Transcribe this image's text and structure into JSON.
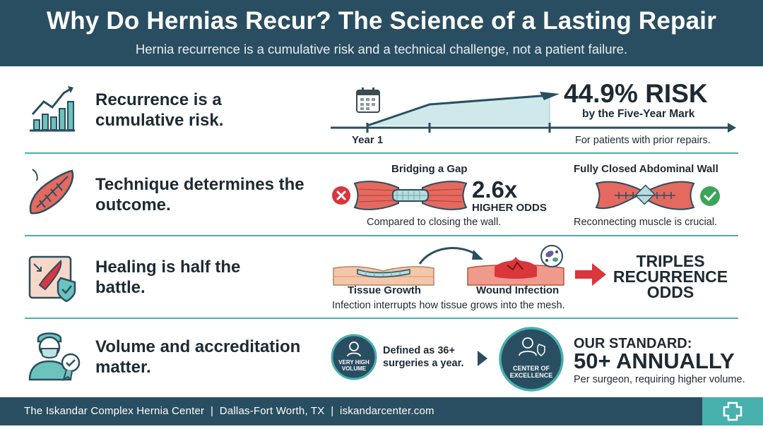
{
  "header": {
    "title": "Why Do Hernias Recur? The Science of a Lasting Repair",
    "subtitle": "Hernia recurrence is a cumulative risk and a technical challenge, not a patient failure."
  },
  "rows": [
    {
      "title": "Recurrence is a cumulative risk.",
      "icon": "growth-chart-icon",
      "chart": {
        "start_label": "Year 1",
        "stat": "44.9% RISK",
        "stat_caption": "by the Five-Year Mark",
        "note": "For patients with prior repairs."
      }
    },
    {
      "title": "Technique determines the outcome.",
      "icon": "sutured-muscle-icon",
      "left_label": "Bridging a Gap",
      "stat": "2.6x",
      "stat_caption": "HIGHER ODDS",
      "left_note": "Compared to closing the wall.",
      "right_label": "Fully Closed Abdominal Wall",
      "right_note": "Reconnecting muscle is crucial."
    },
    {
      "title": "Healing is half the battle.",
      "icon": "wound-shield-icon",
      "left_label": "Tissue Growth",
      "right_label": "Wound Infection",
      "note": "Infection interrupts how tissue grows into the mesh.",
      "result": "TRIPLES RECURRENCE ODDS"
    },
    {
      "title": "Volume and accreditation matter.",
      "icon": "surgeon-award-icon",
      "badge1": "VERY HIGH VOLUME",
      "definition": "Defined as 36+ surgeries a year.",
      "badge2": "CENTER OF EXCELLENCE",
      "standard_label": "OUR STANDARD:",
      "standard_value": "50+ ANNUALLY",
      "standard_note": "Per surgeon, requiring higher volume."
    }
  ],
  "footer": {
    "text": "The Iskandar Complex Hernia Center  |  Dallas-Fort Worth, TX  |  iskandarcenter.com",
    "icon": "medical-cross-icon"
  },
  "colors": {
    "navy": "#2a4e61",
    "teal": "#48b0ad",
    "red": "#d9363e",
    "green": "#3aa55a",
    "text": "#1e2a33"
  }
}
